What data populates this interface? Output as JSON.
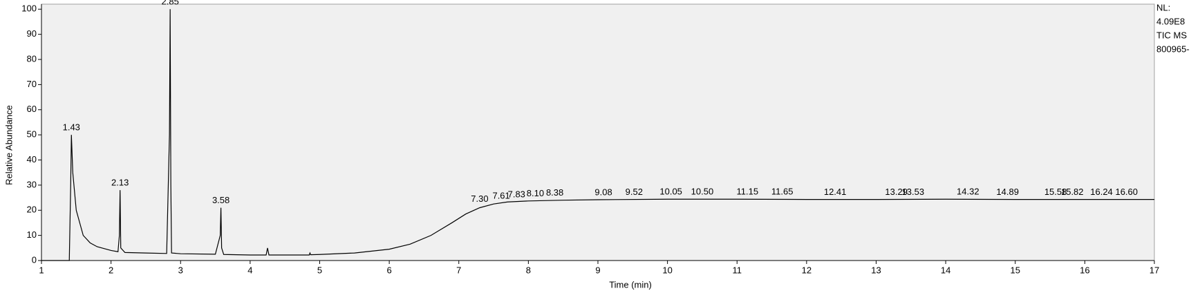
{
  "chart_data": {
    "type": "line",
    "xlabel": "Time (min)",
    "ylabel": "Relative Abundance",
    "side_notes": [
      "NL:",
      "4.09E8",
      "TIC  MS",
      "800965-"
    ],
    "xlim": [
      1,
      17
    ],
    "xticks": [
      1,
      2,
      3,
      4,
      5,
      6,
      7,
      8,
      9,
      10,
      11,
      12,
      13,
      14,
      15,
      16,
      17
    ],
    "ylim": [
      0,
      102
    ],
    "yticks": [
      0,
      10,
      20,
      30,
      40,
      50,
      60,
      70,
      80,
      90,
      100
    ],
    "series": [
      {
        "color": "#000000",
        "x": [
          1.0,
          1.4,
          1.42,
          1.43,
          1.45,
          1.5,
          1.6,
          1.7,
          1.8,
          2.0,
          2.1,
          2.12,
          2.13,
          2.14,
          2.2,
          2.5,
          2.8,
          2.84,
          2.85,
          2.86,
          2.87,
          3.0,
          3.5,
          3.57,
          3.58,
          3.59,
          3.62,
          4.0,
          4.23,
          4.25,
          4.27,
          4.5,
          4.85,
          4.86,
          4.87,
          5.0,
          5.5,
          6.0,
          6.3,
          6.6,
          6.9,
          7.1,
          7.3,
          7.5,
          7.7,
          8.0,
          8.5,
          9.0,
          10.0,
          11.0,
          12.0,
          13.0,
          14.0,
          15.0,
          16.0,
          17.0
        ],
        "values": [
          0,
          0,
          30,
          50,
          35,
          20,
          10,
          7,
          5.5,
          4,
          3.5,
          10,
          28,
          5,
          3.2,
          3,
          2.8,
          50,
          100,
          30,
          3,
          2.7,
          2.5,
          10,
          21,
          5,
          2.4,
          2.2,
          2.2,
          5,
          2.2,
          2.2,
          2.2,
          3,
          2.3,
          2.4,
          3,
          4.5,
          6.5,
          10,
          15,
          18.5,
          21,
          22.5,
          23.3,
          23.7,
          24,
          24.2,
          24.4,
          24.4,
          24.3,
          24.3,
          24.4,
          24.3,
          24.3,
          24.3
        ]
      }
    ],
    "peak_labels": [
      {
        "value": 1.43,
        "label": "1.43"
      },
      {
        "value": 2.13,
        "label": "2.13"
      },
      {
        "value": 2.85,
        "label": "2.85"
      },
      {
        "value": 3.58,
        "label": "3.58"
      },
      {
        "value": 7.3,
        "label": "7.30"
      },
      {
        "value": 7.61,
        "label": "7.61"
      },
      {
        "value": 7.83,
        "label": "7.83"
      },
      {
        "value": 8.1,
        "label": "8.10"
      },
      {
        "value": 8.38,
        "label": "8.38"
      },
      {
        "value": 9.08,
        "label": "9.08"
      },
      {
        "value": 9.52,
        "label": "9.52"
      },
      {
        "value": 10.05,
        "label": "10.05"
      },
      {
        "value": 10.5,
        "label": "10.50"
      },
      {
        "value": 11.15,
        "label": "11.15"
      },
      {
        "value": 11.65,
        "label": "11.65"
      },
      {
        "value": 12.41,
        "label": "12.41"
      },
      {
        "value": 13.29,
        "label": "13.29"
      },
      {
        "value": 13.53,
        "label": "13.53"
      },
      {
        "value": 14.32,
        "label": "14.32"
      },
      {
        "value": 14.89,
        "label": "14.89"
      },
      {
        "value": 15.58,
        "label": "15.58"
      },
      {
        "value": 15.82,
        "label": "15.82"
      },
      {
        "value": 16.24,
        "label": "16.24"
      },
      {
        "value": 16.6,
        "label": "16.60"
      }
    ],
    "peak_heights": [
      50,
      28,
      100,
      21,
      21.5,
      22.8,
      23.4,
      23.8,
      24,
      24.2,
      24.3,
      24.4,
      24.4,
      24.4,
      24.4,
      24.3,
      24.3,
      24.3,
      24.4,
      24.3,
      24.3,
      24.3,
      24.3,
      24.3
    ]
  }
}
